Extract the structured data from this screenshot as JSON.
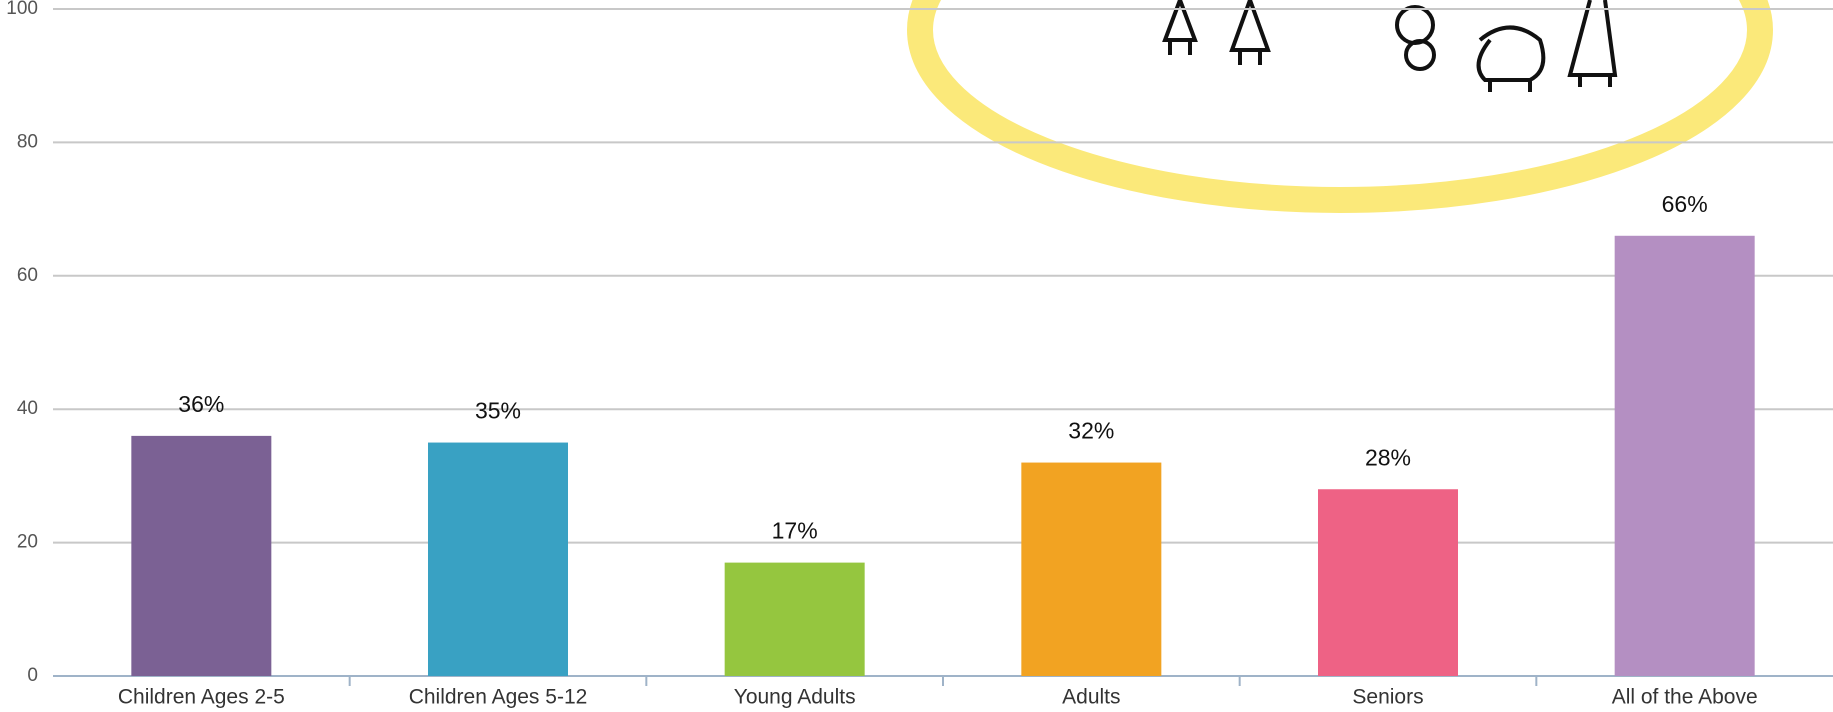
{
  "chart_data": {
    "type": "bar",
    "categories": [
      "Children Ages 2-5",
      "Children Ages 5-12",
      "Young Adults",
      "Adults",
      "Seniors",
      "All of the Above"
    ],
    "values": [
      36,
      35,
      17,
      32,
      28,
      66
    ],
    "value_labels": [
      "36%",
      "35%",
      "17%",
      "32%",
      "28%",
      "66%"
    ],
    "colors": [
      "#7b6194",
      "#39a1c3",
      "#95c63f",
      "#f2a322",
      "#ee6285",
      "#b48fc2"
    ],
    "ylim": [
      0,
      100
    ],
    "yticks": [
      0,
      20,
      40,
      60,
      80,
      100
    ],
    "grid": true
  }
}
